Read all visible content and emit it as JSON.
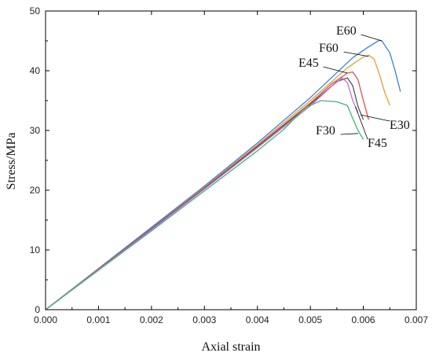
{
  "chart_data": {
    "type": "line",
    "title": "",
    "xlabel": "Axial strain",
    "ylabel": "Stress/MPa",
    "xlim": [
      0,
      0.007
    ],
    "ylim": [
      0,
      50
    ],
    "xticks": [
      0,
      0.001,
      0.002,
      0.003,
      0.004,
      0.005,
      0.006,
      0.007
    ],
    "xtick_labels": [
      "0.000",
      "0.001",
      "0.002",
      "0.003",
      "0.004",
      "0.005",
      "0.006",
      "0.007"
    ],
    "yticks": [
      0,
      10,
      20,
      30,
      40,
      50
    ],
    "ytick_labels": [
      "0",
      "10",
      "20",
      "30",
      "40",
      "50"
    ],
    "grid": false,
    "legend": "none",
    "series": [
      {
        "name": "E60",
        "color": "#3b7fd9",
        "x": [
          0,
          0.001,
          0.002,
          0.003,
          0.004,
          0.005,
          0.0058,
          0.0061,
          0.0063,
          0.00635,
          0.0065,
          0.0066,
          0.0067
        ],
        "y": [
          0,
          6.9,
          13.8,
          20.7,
          27.9,
          35.5,
          42.2,
          44.0,
          45.1,
          45.0,
          43.0,
          40.0,
          36.5
        ]
      },
      {
        "name": "F60",
        "color": "#e0a030",
        "x": [
          0,
          0.001,
          0.002,
          0.003,
          0.004,
          0.005,
          0.0057,
          0.006,
          0.0061,
          0.0062,
          0.0063,
          0.0064,
          0.0065
        ],
        "y": [
          0,
          6.8,
          13.6,
          20.5,
          27.6,
          35.0,
          40.5,
          42.3,
          42.6,
          42.0,
          39.5,
          36.5,
          34.2
        ]
      },
      {
        "name": "E45",
        "color": "#e05050",
        "x": [
          0,
          0.001,
          0.002,
          0.003,
          0.004,
          0.005,
          0.0054,
          0.0057,
          0.0058,
          0.0059,
          0.006,
          0.0061
        ],
        "y": [
          0,
          6.8,
          13.6,
          20.4,
          27.4,
          34.6,
          37.8,
          39.6,
          39.8,
          38.5,
          35.0,
          31.8
        ]
      },
      {
        "name": "E30",
        "color": "#555555",
        "x": [
          0,
          0.001,
          0.002,
          0.003,
          0.004,
          0.005,
          0.0055,
          0.0057,
          0.0058,
          0.0059,
          0.006
        ],
        "y": [
          0,
          6.7,
          13.5,
          20.3,
          27.3,
          34.4,
          38.2,
          38.8,
          37.5,
          34.0,
          31.8
        ]
      },
      {
        "name": "F45",
        "color": "#c070d8",
        "x": [
          0,
          0.001,
          0.002,
          0.003,
          0.004,
          0.005,
          0.0054,
          0.0056,
          0.0057,
          0.0058,
          0.0059
        ],
        "y": [
          0,
          6.7,
          13.4,
          20.2,
          27.1,
          34.1,
          37.4,
          38.8,
          38.0,
          35.0,
          33.0
        ]
      },
      {
        "name": "F30",
        "color": "#3fb57a",
        "x": [
          0,
          0.001,
          0.002,
          0.003,
          0.004,
          0.0045,
          0.0049,
          0.0052,
          0.0055,
          0.0057,
          0.0058,
          0.0059,
          0.006
        ],
        "y": [
          0,
          6.6,
          13.2,
          19.9,
          26.6,
          30.2,
          33.8,
          35.0,
          34.8,
          34.2,
          32.0,
          30.0,
          28.5
        ]
      }
    ]
  }
}
